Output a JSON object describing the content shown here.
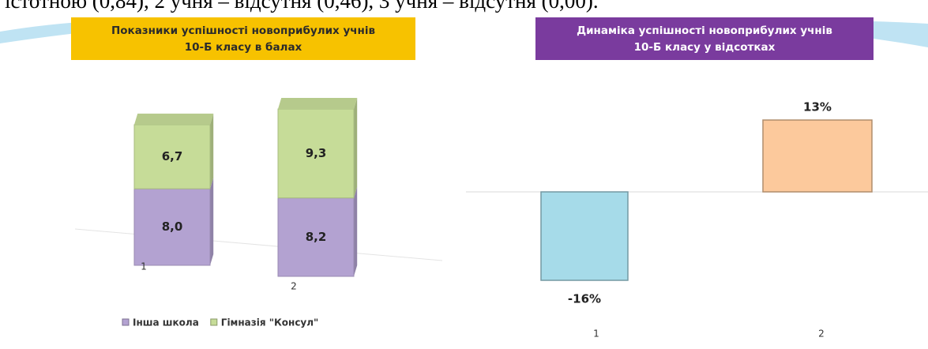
{
  "header_text": "істотною (0,84), 2 учня – відсутня (0,46), 3 учня – відсутня (0,00).",
  "chart_data": [
    {
      "type": "stacked-bar-3d",
      "title": "Показники успішності новоприбулих учнів 10-Б класу в балах",
      "categories": [
        "1",
        "2"
      ],
      "series": [
        {
          "name": "Інша школа",
          "color": "#b3a2d1",
          "values": [
            8.0,
            8.2
          ],
          "value_labels": [
            "8,0",
            "8,2"
          ]
        },
        {
          "name": "Гімназія \"Консул\"",
          "color": "#c6dc98",
          "values": [
            6.7,
            9.3
          ],
          "value_labels": [
            "6,7",
            "9,3"
          ]
        }
      ]
    },
    {
      "type": "bar",
      "title": "Динаміка успішності новоприбулих  учнів 10-Б класу у відсотках",
      "categories": [
        "1",
        "2"
      ],
      "values": [
        -16,
        13
      ],
      "value_labels": [
        "-16%",
        "13%"
      ],
      "colors": [
        "#a6dbe9",
        "#fcc99c"
      ]
    }
  ]
}
